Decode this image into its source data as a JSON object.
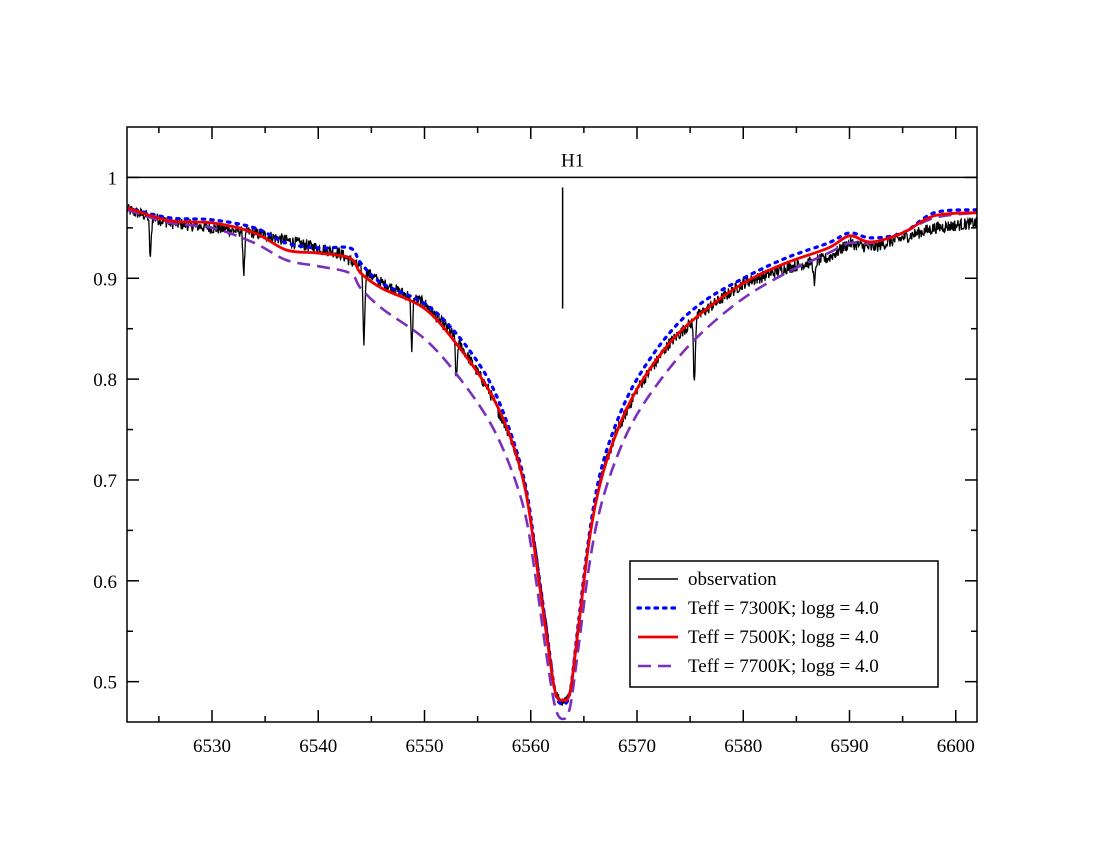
{
  "chart_data": {
    "type": "line",
    "title": "",
    "xlabel": "",
    "ylabel": "",
    "xlim": [
      6522,
      6602
    ],
    "ylim": [
      0.46,
      1.05
    ],
    "x_ticks": [
      6530,
      6540,
      6550,
      6560,
      6570,
      6580,
      6590,
      6600
    ],
    "y_ticks": [
      0.5,
      0.6,
      0.7,
      0.8,
      0.9,
      1.0
    ],
    "x_tick_labels": [
      "6530",
      "6540",
      "6550",
      "6560",
      "6570",
      "6580",
      "6590",
      "6600"
    ],
    "y_tick_labels": [
      "0.5",
      "0.6",
      "0.7",
      "0.8",
      "0.9",
      "1"
    ],
    "grid": false,
    "legend_position": "bottom-right",
    "annotations": {
      "continuum_level": 1.0,
      "line_label": "H1",
      "line_center": 6563,
      "marker_top": 0.99,
      "marker_bottom": 0.87
    },
    "series": [
      {
        "name": "observation",
        "color": "#000000",
        "style": "solid",
        "x": [
          6522,
          6526,
          6530,
          6534,
          6538,
          6542,
          6546,
          6550,
          6553,
          6556,
          6558,
          6559.5,
          6560.5,
          6561.5,
          6562.3,
          6563,
          6563.7,
          6564.5,
          6565.5,
          6566.5,
          6568,
          6570,
          6573,
          6576,
          6580,
          6584,
          6588,
          6590,
          6592,
          6595,
          6598,
          6602
        ],
        "values": [
          0.968,
          0.955,
          0.95,
          0.945,
          0.935,
          0.925,
          0.895,
          0.875,
          0.84,
          0.79,
          0.745,
          0.695,
          0.63,
          0.555,
          0.49,
          0.478,
          0.49,
          0.56,
          0.645,
          0.7,
          0.745,
          0.79,
          0.835,
          0.865,
          0.895,
          0.91,
          0.92,
          0.935,
          0.93,
          0.94,
          0.95,
          0.955
        ],
        "absorption_lines": [
          [
            6524.2,
            0.04
          ],
          [
            6533,
            0.04
          ],
          [
            6544.3,
            0.07
          ],
          [
            6548.8,
            0.05
          ],
          [
            6553,
            0.04
          ],
          [
            6575.4,
            0.06
          ],
          [
            6586.7,
            0.025
          ]
        ]
      },
      {
        "name": "Teff = 7300K; logg = 4.0",
        "color": "#0000ff",
        "style": "dotted",
        "x": [
          6522,
          6526,
          6530,
          6534,
          6537,
          6540,
          6543,
          6544,
          6546,
          6550,
          6553,
          6556,
          6558,
          6559.5,
          6560.5,
          6561.5,
          6562.3,
          6563,
          6563.7,
          6564.5,
          6565.5,
          6566.5,
          6568,
          6570,
          6573,
          6576,
          6580,
          6584,
          6588,
          6590,
          6592,
          6595,
          6598,
          6602
        ],
        "values": [
          0.97,
          0.96,
          0.958,
          0.95,
          0.935,
          0.93,
          0.93,
          0.915,
          0.895,
          0.875,
          0.845,
          0.8,
          0.75,
          0.695,
          0.625,
          0.55,
          0.49,
          0.478,
          0.49,
          0.56,
          0.645,
          0.705,
          0.755,
          0.8,
          0.845,
          0.875,
          0.9,
          0.92,
          0.935,
          0.945,
          0.94,
          0.945,
          0.965,
          0.968
        ]
      },
      {
        "name": "Teff = 7500K; logg = 4.0",
        "color": "#ee0000",
        "style": "solid",
        "x": [
          6522,
          6526,
          6530,
          6534,
          6537,
          6540,
          6543,
          6544,
          6546,
          6550,
          6553,
          6556,
          6558,
          6559.5,
          6560.5,
          6561.5,
          6562.3,
          6563,
          6563.7,
          6564.5,
          6565.5,
          6566.5,
          6568,
          6570,
          6573,
          6576,
          6580,
          6584,
          6588,
          6590,
          6592,
          6595,
          6598,
          6602
        ],
        "values": [
          0.97,
          0.957,
          0.955,
          0.945,
          0.928,
          0.925,
          0.92,
          0.905,
          0.89,
          0.87,
          0.835,
          0.79,
          0.745,
          0.69,
          0.62,
          0.545,
          0.49,
          0.482,
          0.49,
          0.555,
          0.64,
          0.695,
          0.745,
          0.79,
          0.835,
          0.865,
          0.895,
          0.915,
          0.93,
          0.942,
          0.936,
          0.945,
          0.962,
          0.965
        ]
      },
      {
        "name": "Teff = 7700K; logg = 4.0",
        "color": "#7b2fbe",
        "style": "dashed",
        "x": [
          6522,
          6526,
          6530,
          6534,
          6537,
          6540,
          6543,
          6544,
          6546,
          6550,
          6553,
          6556,
          6558,
          6559.5,
          6560.5,
          6561.5,
          6562.3,
          6563,
          6563.7,
          6564.5,
          6565.5,
          6566.5,
          6568,
          6570,
          6573,
          6576,
          6580,
          6584,
          6588,
          6590,
          6592,
          6595,
          6598,
          6602
        ],
        "values": [
          0.968,
          0.955,
          0.95,
          0.935,
          0.918,
          0.912,
          0.905,
          0.89,
          0.87,
          0.84,
          0.805,
          0.76,
          0.715,
          0.665,
          0.6,
          0.525,
          0.475,
          0.463,
          0.475,
          0.535,
          0.615,
          0.67,
          0.72,
          0.765,
          0.81,
          0.845,
          0.88,
          0.905,
          0.925,
          0.935,
          0.935,
          0.945,
          0.96,
          0.965
        ]
      }
    ]
  }
}
